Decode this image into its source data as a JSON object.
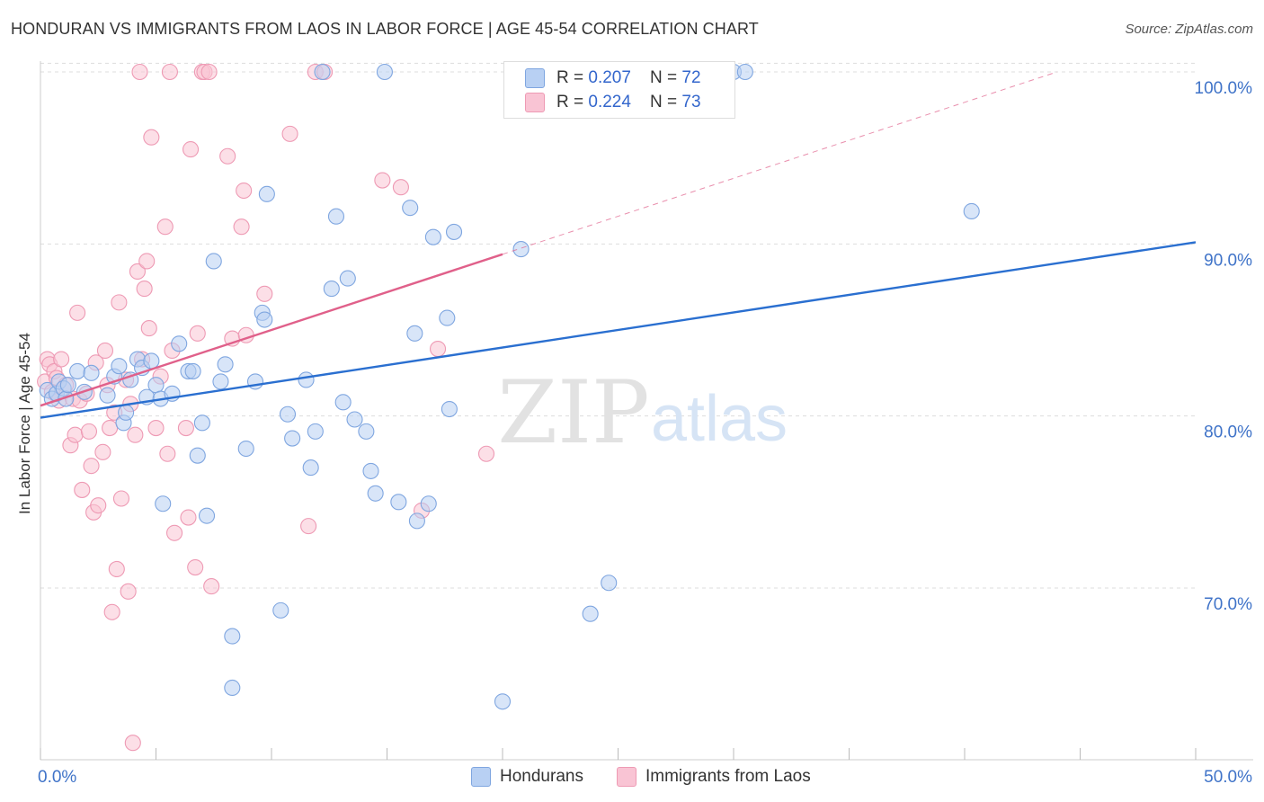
{
  "title": "HONDURAN VS IMMIGRANTS FROM LAOS IN LABOR FORCE | AGE 45-54 CORRELATION CHART",
  "source": "Source: ZipAtlas.com",
  "watermark": {
    "zip": "ZIP",
    "atlas": "atlas"
  },
  "colors": {
    "blue_fill": "#b8d0f3",
    "blue_stroke": "#7fa6e0",
    "blue_line": "#2a6fd0",
    "pink_fill": "#f9c4d4",
    "pink_stroke": "#ee9ab4",
    "pink_line": "#e0608a",
    "tick_text": "#3f73c8",
    "grid": "#dddddd"
  },
  "legend_top": {
    "rows": [
      {
        "r_label": "R = ",
        "r_value": "0.207",
        "n_label": "N = ",
        "n_value": "72"
      },
      {
        "r_label": "R = ",
        "r_value": "0.224",
        "n_label": "N = ",
        "n_value": "73"
      }
    ]
  },
  "chart_data": {
    "type": "scatter",
    "title": "HONDURAN VS IMMIGRANTS FROM LAOS IN LABOR FORCE | AGE 45-54 CORRELATION CHART",
    "xlabel": "",
    "ylabel": "In Labor Force | Age 45-54",
    "xlim": [
      0,
      50
    ],
    "ylim": [
      60,
      101
    ],
    "x_tick_labels": [
      "0.0%",
      "50.0%"
    ],
    "y_ticks": [
      70,
      80,
      90,
      100
    ],
    "y_tick_labels": [
      "70.0%",
      "80.0%",
      "90.0%",
      "100.0%"
    ],
    "grid": true,
    "legend_position": "top-center",
    "series": [
      {
        "name": "Hondurans",
        "R": 0.207,
        "N": 72,
        "trend": {
          "x": [
            0,
            50
          ],
          "y": [
            79.9,
            90.1
          ]
        },
        "points": [
          [
            0.3,
            81.5
          ],
          [
            0.5,
            81.0
          ],
          [
            0.7,
            81.3
          ],
          [
            0.8,
            82.0
          ],
          [
            1.0,
            81.6
          ],
          [
            1.1,
            81.0
          ],
          [
            1.2,
            81.8
          ],
          [
            1.6,
            82.6
          ],
          [
            1.9,
            81.4
          ],
          [
            2.2,
            82.5
          ],
          [
            2.9,
            81.2
          ],
          [
            3.2,
            82.3
          ],
          [
            3.4,
            82.9
          ],
          [
            3.6,
            79.6
          ],
          [
            3.7,
            80.2
          ],
          [
            3.9,
            82.1
          ],
          [
            4.2,
            83.3
          ],
          [
            4.4,
            82.8
          ],
          [
            4.6,
            81.1
          ],
          [
            4.8,
            83.2
          ],
          [
            5.0,
            81.8
          ],
          [
            5.2,
            81.0
          ],
          [
            5.3,
            74.9
          ],
          [
            5.7,
            81.3
          ],
          [
            6.0,
            84.2
          ],
          [
            6.4,
            82.6
          ],
          [
            6.6,
            82.6
          ],
          [
            6.8,
            77.7
          ],
          [
            7.0,
            79.6
          ],
          [
            7.2,
            74.2
          ],
          [
            7.5,
            89.0
          ],
          [
            7.8,
            82.0
          ],
          [
            8.0,
            83.0
          ],
          [
            8.3,
            67.2
          ],
          [
            8.3,
            64.2
          ],
          [
            8.9,
            78.1
          ],
          [
            9.3,
            82.0
          ],
          [
            9.6,
            86.0
          ],
          [
            9.7,
            85.6
          ],
          [
            9.8,
            92.9
          ],
          [
            10.4,
            68.7
          ],
          [
            10.7,
            80.1
          ],
          [
            10.9,
            78.7
          ],
          [
            11.5,
            82.1
          ],
          [
            11.7,
            77.0
          ],
          [
            11.9,
            79.1
          ],
          [
            12.2,
            100.0
          ],
          [
            12.6,
            87.4
          ],
          [
            12.8,
            91.6
          ],
          [
            13.1,
            80.8
          ],
          [
            13.3,
            88.0
          ],
          [
            13.6,
            79.8
          ],
          [
            14.1,
            79.1
          ],
          [
            14.3,
            76.8
          ],
          [
            14.5,
            75.5
          ],
          [
            14.9,
            100.0
          ],
          [
            15.5,
            75.0
          ],
          [
            16.0,
            92.1
          ],
          [
            16.2,
            84.8
          ],
          [
            16.3,
            73.9
          ],
          [
            16.8,
            74.9
          ],
          [
            17.0,
            90.4
          ],
          [
            17.6,
            85.7
          ],
          [
            17.7,
            80.4
          ],
          [
            17.9,
            90.7
          ],
          [
            20.0,
            63.4
          ],
          [
            20.8,
            89.7
          ],
          [
            23.8,
            68.5
          ],
          [
            24.6,
            70.3
          ],
          [
            30.0,
            100.0
          ],
          [
            30.5,
            100.0
          ],
          [
            40.3,
            91.9
          ]
        ]
      },
      {
        "name": "Immigrants from Laos",
        "R": 0.224,
        "N": 73,
        "trend": {
          "x": [
            0,
            20
          ],
          "y": [
            80.6,
            89.4
          ]
        },
        "trend_extension": {
          "x": [
            20,
            44
          ],
          "y": [
            89.4,
            100.0
          ]
        },
        "points": [
          [
            0.2,
            82.0
          ],
          [
            0.3,
            83.3
          ],
          [
            0.4,
            83.0
          ],
          [
            0.5,
            81.4
          ],
          [
            0.6,
            82.6
          ],
          [
            0.7,
            82.2
          ],
          [
            0.8,
            80.9
          ],
          [
            0.9,
            83.3
          ],
          [
            1.1,
            81.8
          ],
          [
            1.3,
            78.3
          ],
          [
            1.4,
            81.0
          ],
          [
            1.5,
            78.9
          ],
          [
            1.6,
            86.0
          ],
          [
            1.7,
            80.9
          ],
          [
            1.8,
            75.7
          ],
          [
            2.0,
            81.3
          ],
          [
            2.1,
            79.1
          ],
          [
            2.2,
            77.1
          ],
          [
            2.3,
            74.4
          ],
          [
            2.4,
            83.1
          ],
          [
            2.5,
            74.8
          ],
          [
            2.7,
            77.9
          ],
          [
            2.8,
            83.8
          ],
          [
            2.9,
            81.8
          ],
          [
            3.0,
            79.3
          ],
          [
            3.1,
            68.6
          ],
          [
            3.2,
            80.2
          ],
          [
            3.3,
            71.1
          ],
          [
            3.4,
            86.6
          ],
          [
            3.5,
            75.2
          ],
          [
            3.7,
            82.1
          ],
          [
            3.8,
            69.8
          ],
          [
            3.9,
            80.7
          ],
          [
            4.0,
            61.0
          ],
          [
            4.1,
            78.9
          ],
          [
            4.2,
            88.4
          ],
          [
            4.3,
            100.0
          ],
          [
            4.4,
            83.3
          ],
          [
            4.5,
            87.4
          ],
          [
            4.6,
            89.0
          ],
          [
            4.7,
            85.1
          ],
          [
            4.8,
            96.2
          ],
          [
            5.0,
            79.3
          ],
          [
            5.2,
            82.3
          ],
          [
            5.4,
            91.0
          ],
          [
            5.5,
            77.8
          ],
          [
            5.6,
            100.0
          ],
          [
            5.7,
            83.8
          ],
          [
            5.8,
            73.2
          ],
          [
            6.3,
            79.3
          ],
          [
            6.4,
            74.1
          ],
          [
            6.5,
            95.5
          ],
          [
            6.7,
            71.2
          ],
          [
            6.8,
            84.8
          ],
          [
            7.0,
            100.0
          ],
          [
            7.1,
            100.0
          ],
          [
            7.3,
            100.0
          ],
          [
            7.4,
            70.1
          ],
          [
            8.1,
            95.1
          ],
          [
            8.3,
            84.5
          ],
          [
            8.7,
            91.0
          ],
          [
            8.8,
            93.1
          ],
          [
            8.9,
            84.7
          ],
          [
            9.7,
            87.1
          ],
          [
            10.8,
            96.4
          ],
          [
            11.6,
            73.6
          ],
          [
            11.9,
            100.0
          ],
          [
            12.3,
            100.0
          ],
          [
            14.8,
            93.7
          ],
          [
            15.6,
            93.3
          ],
          [
            16.5,
            74.5
          ],
          [
            17.2,
            83.9
          ],
          [
            19.3,
            77.8
          ]
        ]
      }
    ]
  },
  "bottom_legend": {
    "items": [
      "Hondurans",
      "Immigrants from Laos"
    ]
  }
}
